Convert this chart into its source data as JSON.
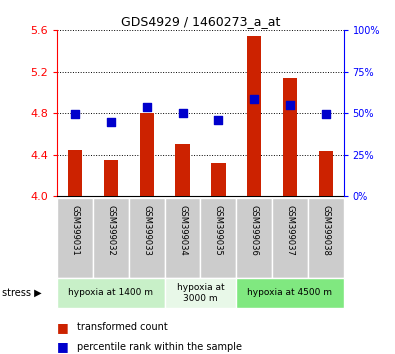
{
  "title": "GDS4929 / 1460273_a_at",
  "samples": [
    "GSM399031",
    "GSM399032",
    "GSM399033",
    "GSM399034",
    "GSM399035",
    "GSM399036",
    "GSM399037",
    "GSM399038"
  ],
  "red_values": [
    4.45,
    4.35,
    4.8,
    4.5,
    4.32,
    5.54,
    5.14,
    4.44
  ],
  "blue_values": [
    4.79,
    4.72,
    4.86,
    4.8,
    4.74,
    4.94,
    4.88,
    4.79
  ],
  "ymin": 4.0,
  "ymax": 5.6,
  "yticks": [
    4.0,
    4.4,
    4.8,
    5.2,
    5.6
  ],
  "right_yticks": [
    0,
    25,
    50,
    75,
    100
  ],
  "groups": [
    {
      "label": "hypoxia at 1400 m",
      "start": 0,
      "end": 3,
      "color": "#c8f0c8"
    },
    {
      "label": "hypoxia at\n3000 m",
      "start": 3,
      "end": 5,
      "color": "#e8f8e8"
    },
    {
      "label": "hypoxia at 4500 m",
      "start": 5,
      "end": 8,
      "color": "#80e880"
    }
  ],
  "bar_color": "#cc2200",
  "dot_color": "#0000cc",
  "bar_width": 0.4,
  "dot_size": 30,
  "sample_bg": "#cccccc"
}
